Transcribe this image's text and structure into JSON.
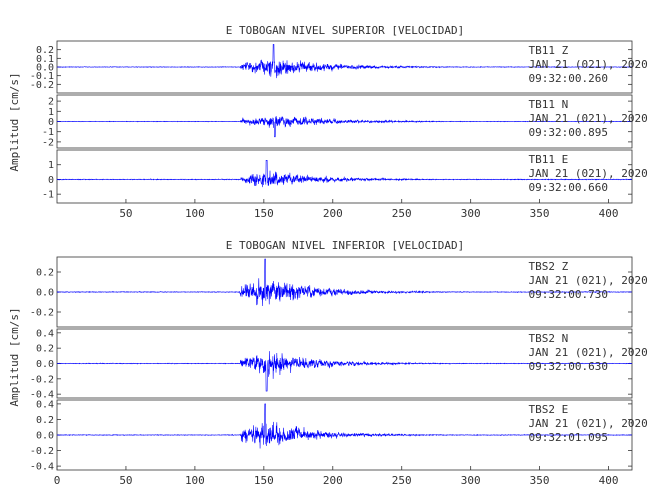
{
  "colors": {
    "trace": "#0000ff",
    "frame": "#333333",
    "text": "#333333"
  },
  "chart_data": [
    {
      "type": "line",
      "title": "E TOBOGAN NIVEL SUPERIOR [VELOCIDAD]",
      "ylabel": "Amplitud [cm/s]",
      "xlabel": "",
      "xlim": [
        0,
        417
      ],
      "xticks": [
        "50",
        "100",
        "150",
        "200",
        "250",
        "300",
        "350",
        "400"
      ],
      "grid": false,
      "traces": [
        {
          "station": "TB11",
          "component": "Z",
          "date": "JAN 21 (021), 2020",
          "time": "09:32:00.260",
          "ylim": [
            -0.3,
            0.3
          ],
          "yticks": [
            "-0.2",
            "-0.1",
            "0.0",
            "0.1",
            "0.2"
          ],
          "onset": 133,
          "peak_time": 157,
          "peak_amplitude": 0.26,
          "duration": 110,
          "noise": 0.004
        },
        {
          "station": "TB11",
          "component": "N",
          "date": "JAN 21 (021), 2020",
          "time": "09:32:00.895",
          "ylim": [
            -2.6,
            2.6
          ],
          "yticks": [
            "-2",
            "-1",
            "0",
            "1",
            "2"
          ],
          "onset": 133,
          "peak_time": 158,
          "peak_amplitude": 1.5,
          "duration": 115,
          "noise": 0.03
        },
        {
          "station": "TB11",
          "component": "E",
          "date": "JAN 21 (021), 2020",
          "time": "09:32:00.660",
          "ylim": [
            -1.6,
            2.0
          ],
          "yticks": [
            "-1",
            "0",
            "1"
          ],
          "onset": 133,
          "peak_time": 152,
          "peak_amplitude": 1.3,
          "duration": 115,
          "noise": 0.03
        }
      ]
    },
    {
      "type": "line",
      "title": "E TOBOGAN NIVEL INFERIOR [VELOCIDAD]",
      "ylabel": "Amplitud [cm/s]",
      "xlabel": "",
      "xlim": [
        0,
        417
      ],
      "xticks": [
        "0",
        "50",
        "100",
        "150",
        "200",
        "250",
        "300",
        "350",
        "400"
      ],
      "grid": false,
      "traces": [
        {
          "station": "TBS2",
          "component": "Z",
          "date": "JAN 21 (021), 2020",
          "time": "09:32:00.730",
          "ylim": [
            -0.35,
            0.35
          ],
          "yticks": [
            "-0.2",
            "0.0",
            "0.2"
          ],
          "onset": 132,
          "peak_time": 151,
          "peak_amplitude": 0.33,
          "duration": 105,
          "noise": 0.004
        },
        {
          "station": "TBS2",
          "component": "N",
          "date": "JAN 21 (021), 2020",
          "time": "09:32:00.630",
          "ylim": [
            -0.45,
            0.45
          ],
          "yticks": [
            "-0.4",
            "-0.2",
            "0.0",
            "0.2",
            "0.4"
          ],
          "onset": 133,
          "peak_time": 152,
          "peak_amplitude": 0.36,
          "duration": 105,
          "noise": 0.005
        },
        {
          "station": "TBS2",
          "component": "E",
          "date": "JAN 21 (021), 2020",
          "time": "09:32:01.095",
          "ylim": [
            -0.45,
            0.45
          ],
          "yticks": [
            "-0.4",
            "-0.2",
            "0.0",
            "0.2",
            "0.4"
          ],
          "onset": 133,
          "peak_time": 151,
          "peak_amplitude": 0.4,
          "duration": 100,
          "noise": 0.005
        }
      ]
    }
  ]
}
